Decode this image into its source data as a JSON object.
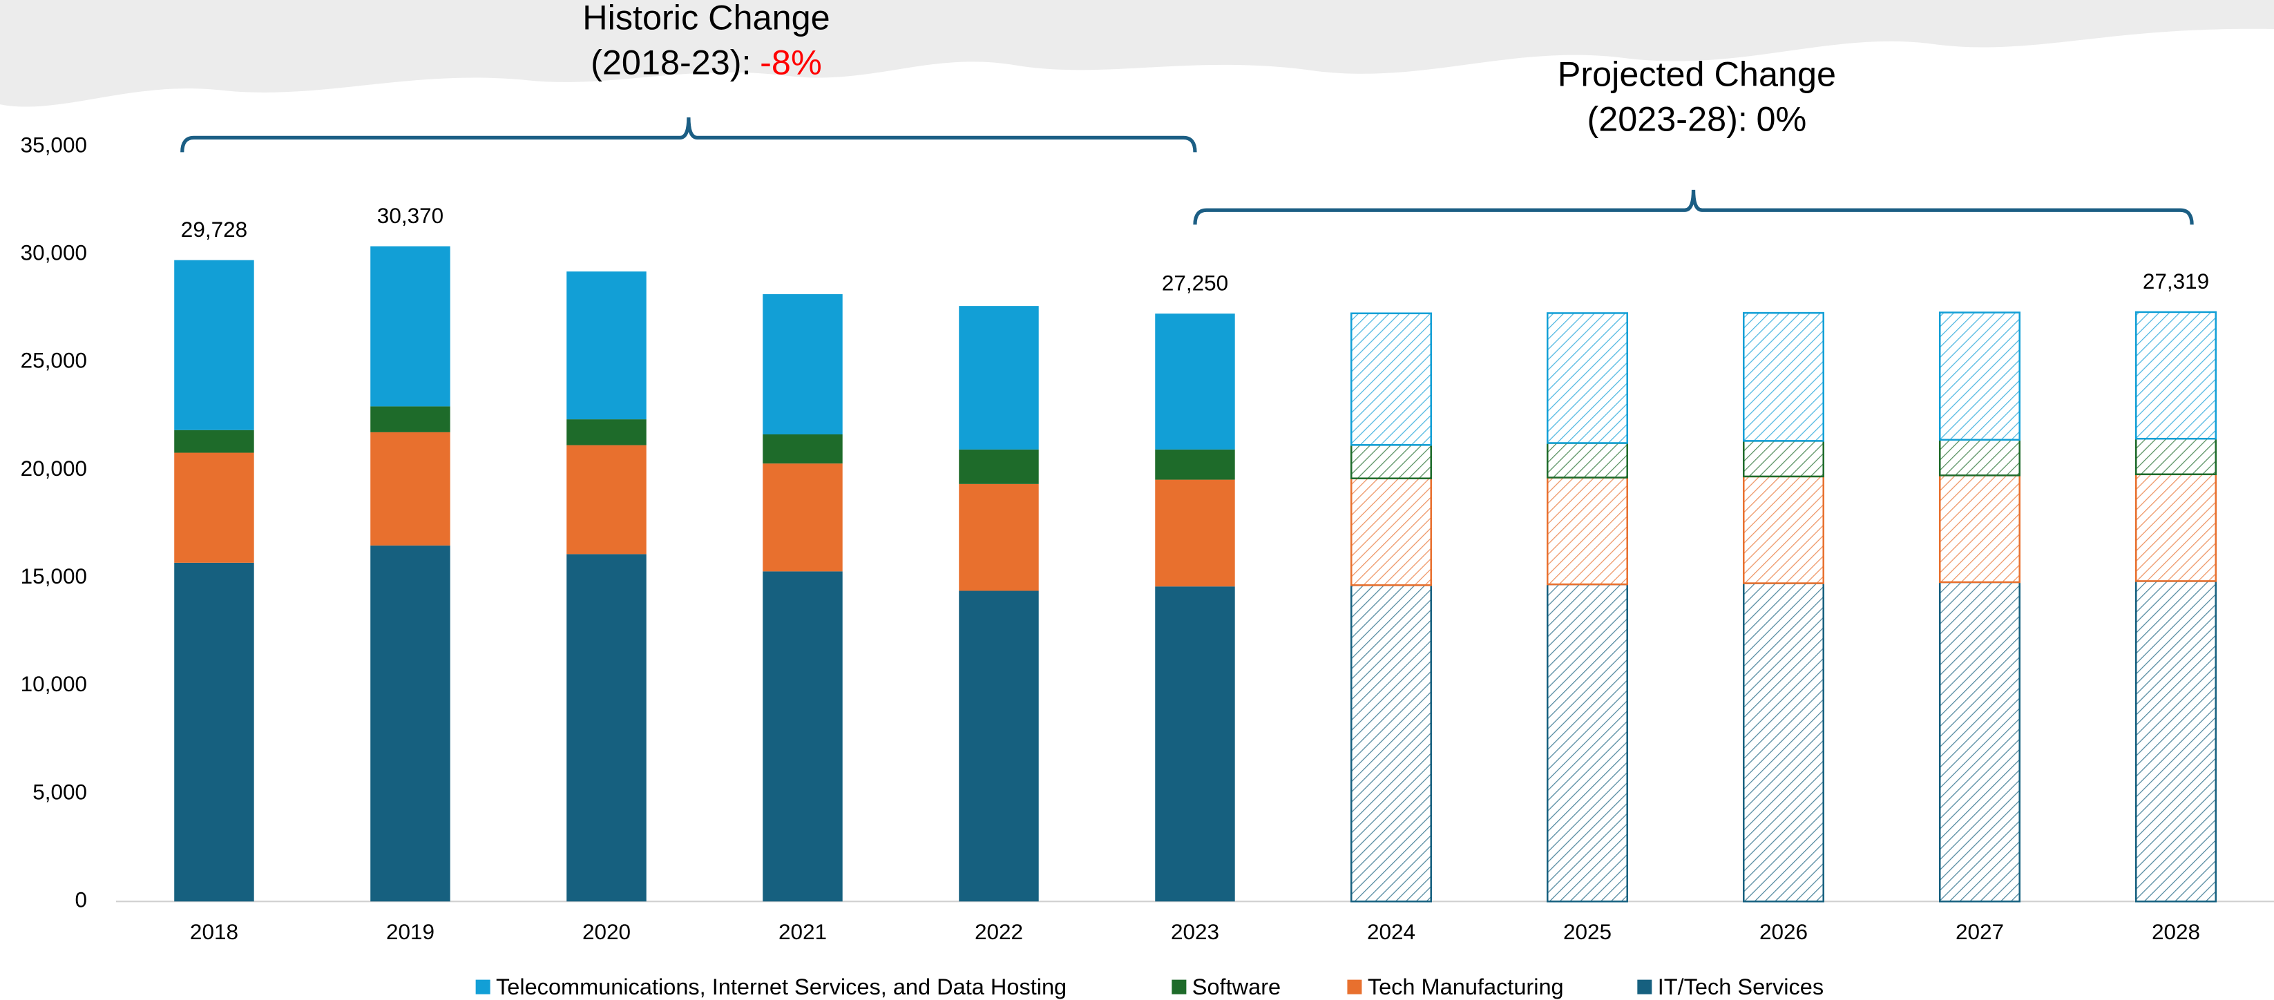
{
  "chart_data": {
    "type": "stacked_bar",
    "categories": [
      "2018",
      "2019",
      "2020",
      "2021",
      "2022",
      "2023",
      "2024",
      "2025",
      "2026",
      "2027",
      "2028"
    ],
    "projected_from": "2024",
    "series": [
      {
        "name": "Telecommunications, Internet Services, and Data Hosting",
        "color": "#129fd6",
        "values": [
          7878,
          7420,
          6850,
          6500,
          6650,
          6300,
          6100,
          6020,
          5930,
          5900,
          5869
        ]
      },
      {
        "name": "Software",
        "color": "#1e6b2a",
        "values": [
          1050,
          1200,
          1200,
          1350,
          1600,
          1400,
          1550,
          1600,
          1650,
          1650,
          1650
        ]
      },
      {
        "name": "Tech Manufacturing",
        "color": "#e8702e",
        "values": [
          5100,
          5250,
          5050,
          5000,
          4950,
          4950,
          4950,
          4950,
          4950,
          4950,
          4950
        ]
      },
      {
        "name": "IT/Tech Services",
        "color": "#16607f",
        "values": [
          15700,
          16500,
          16100,
          15300,
          14400,
          14600,
          14660,
          14700,
          14750,
          14800,
          14850
        ]
      }
    ],
    "total_labels": [
      {
        "category": "2018",
        "value": 29728,
        "label": "29,728"
      },
      {
        "category": "2019",
        "value": 30370,
        "label": "30,370"
      },
      {
        "category": "2023",
        "value": 27250,
        "label": "27,250"
      },
      {
        "category": "2028",
        "value": 27319,
        "label": "27,319"
      }
    ],
    "annotations": [
      {
        "lines": [
          "Historic Change",
          "(2018-23):"
        ],
        "change": "-8%",
        "change_color": "#ff0000",
        "from": "2018",
        "to": "2023"
      },
      {
        "lines": [
          "Projected Change",
          "(2023-28):"
        ],
        "change": "0%",
        "change_color": "#000000",
        "from": "2023",
        "to": "2028"
      }
    ],
    "ylim": [
      0,
      35000
    ],
    "yticks": [
      0,
      {
        "value": 5000,
        "label": "5,000"
      },
      {
        "value": 10000,
        "label": "10,000"
      },
      {
        "value": 15000,
        "label": "15,000"
      },
      {
        "value": 20000,
        "label": "20,000"
      },
      {
        "value": 25000,
        "label": "25,000"
      },
      {
        "value": 30000,
        "label": "30,000"
      },
      {
        "value": 35000,
        "label": "35,000"
      }
    ],
    "grid": false,
    "legend": "bottom"
  }
}
